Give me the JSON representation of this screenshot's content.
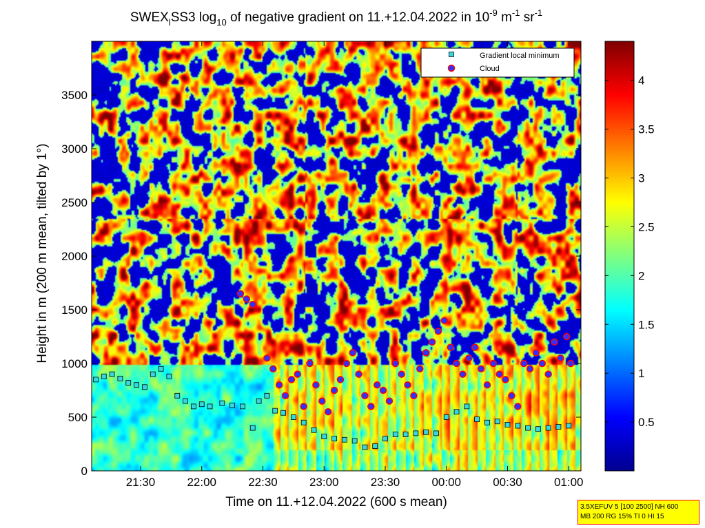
{
  "chart_data": {
    "type": "heatmap",
    "title_parts": {
      "a": "SWEX",
      "a_sub": "l",
      "b": "SS3 log",
      "b_sub": "10",
      "c": " of negative gradient on 11.+12.04.2022 in 10",
      "c_sup": "-9",
      "d": " m",
      "d_sup": "-1",
      "e": " sr",
      "e_sup": "-1"
    },
    "xlabel": "Time on 11.+12.04.2022 (600 s mean)",
    "ylabel": "Height in m (200 m mean, tilted by 1°)",
    "x_range": [
      "21:06",
      "01:06"
    ],
    "ylim": [
      0,
      4000
    ],
    "x_ticks": [
      "21:30",
      "22:00",
      "22:30",
      "23:00",
      "23:30",
      "00:00",
      "00:30",
      "01:00"
    ],
    "y_ticks": [
      "0",
      "500",
      "1000",
      "1500",
      "2000",
      "2500",
      "3000",
      "3500"
    ],
    "colorbar": {
      "ticks": [
        "0.5",
        "1",
        "1.5",
        "2",
        "2.5",
        "3",
        "3.5",
        "4"
      ],
      "range": [
        0,
        4.4
      ],
      "colormap": "jet"
    },
    "legend": {
      "placement": "top-right",
      "entries": [
        {
          "label": "Gradient local minimum",
          "marker": "square",
          "color": "#37d6e0"
        },
        {
          "label": "Cloud",
          "marker": "circle",
          "color": "#3030ff",
          "edge": "#ff0000"
        }
      ]
    },
    "series": [
      {
        "name": "Gradient local minimum",
        "points": [
          [
            "21:08",
            850
          ],
          [
            "21:12",
            880
          ],
          [
            "21:16",
            900
          ],
          [
            "21:20",
            860
          ],
          [
            "21:24",
            820
          ],
          [
            "21:28",
            800
          ],
          [
            "21:32",
            780
          ],
          [
            "21:36",
            900
          ],
          [
            "21:40",
            950
          ],
          [
            "21:44",
            880
          ],
          [
            "21:48",
            700
          ],
          [
            "21:52",
            650
          ],
          [
            "21:56",
            600
          ],
          [
            "22:00",
            620
          ],
          [
            "22:04",
            600
          ],
          [
            "22:10",
            630
          ],
          [
            "22:15",
            610
          ],
          [
            "22:20",
            600
          ],
          [
            "22:25",
            400
          ],
          [
            "22:28",
            650
          ],
          [
            "22:32",
            700
          ],
          [
            "22:36",
            560
          ],
          [
            "22:40",
            540
          ],
          [
            "22:45",
            500
          ],
          [
            "22:50",
            450
          ],
          [
            "22:55",
            380
          ],
          [
            "23:00",
            320
          ],
          [
            "23:05",
            300
          ],
          [
            "23:10",
            290
          ],
          [
            "23:15",
            280
          ],
          [
            "23:20",
            220
          ],
          [
            "23:25",
            230
          ],
          [
            "23:30",
            300
          ],
          [
            "23:35",
            340
          ],
          [
            "23:40",
            340
          ],
          [
            "23:45",
            350
          ],
          [
            "23:50",
            360
          ],
          [
            "23:55",
            350
          ],
          [
            "00:00",
            500
          ],
          [
            "00:05",
            550
          ],
          [
            "00:10",
            600
          ],
          [
            "00:15",
            480
          ],
          [
            "00:20",
            450
          ],
          [
            "00:25",
            460
          ],
          [
            "00:30",
            430
          ],
          [
            "00:35",
            420
          ],
          [
            "00:40",
            400
          ],
          [
            "00:45",
            390
          ],
          [
            "00:50",
            400
          ],
          [
            "00:55",
            410
          ],
          [
            "01:00",
            420
          ]
        ]
      },
      {
        "name": "Cloud",
        "points": [
          [
            "22:19",
            1650
          ],
          [
            "22:22",
            1600
          ],
          [
            "22:25",
            1550
          ],
          [
            "22:32",
            1050
          ],
          [
            "22:35",
            950
          ],
          [
            "22:38",
            800
          ],
          [
            "22:41",
            700
          ],
          [
            "22:44",
            850
          ],
          [
            "22:47",
            900
          ],
          [
            "22:50",
            600
          ],
          [
            "22:53",
            1000
          ],
          [
            "22:56",
            800
          ],
          [
            "22:59",
            650
          ],
          [
            "23:02",
            550
          ],
          [
            "23:05",
            750
          ],
          [
            "23:08",
            850
          ],
          [
            "23:11",
            1000
          ],
          [
            "23:14",
            1100
          ],
          [
            "23:17",
            900
          ],
          [
            "23:20",
            700
          ],
          [
            "23:23",
            600
          ],
          [
            "23:26",
            800
          ],
          [
            "23:29",
            750
          ],
          [
            "23:32",
            650
          ],
          [
            "23:35",
            1000
          ],
          [
            "23:38",
            900
          ],
          [
            "23:41",
            800
          ],
          [
            "23:44",
            700
          ],
          [
            "23:47",
            950
          ],
          [
            "23:50",
            1100
          ],
          [
            "23:53",
            1200
          ],
          [
            "23:56",
            1300
          ],
          [
            "23:59",
            1400
          ],
          [
            "00:02",
            1150
          ],
          [
            "00:05",
            1000
          ],
          [
            "00:08",
            900
          ],
          [
            "00:11",
            1050
          ],
          [
            "00:14",
            1150
          ],
          [
            "00:17",
            950
          ],
          [
            "00:20",
            800
          ],
          [
            "00:23",
            1000
          ],
          [
            "00:26",
            900
          ],
          [
            "00:29",
            850
          ],
          [
            "00:32",
            700
          ],
          [
            "00:35",
            600
          ],
          [
            "00:38",
            1000
          ],
          [
            "00:41",
            950
          ],
          [
            "00:44",
            1100
          ],
          [
            "00:47",
            1000
          ],
          [
            "00:50",
            900
          ],
          [
            "00:53",
            1200
          ],
          [
            "00:56",
            1050
          ],
          [
            "00:59",
            1250
          ],
          [
            "01:01",
            1000
          ]
        ]
      }
    ]
  },
  "info_box": {
    "line1": "3.5XEFUV 5 [100 2500] NH 600",
    "line2": "MB 200 RG 15% TI 0 HI 15"
  }
}
